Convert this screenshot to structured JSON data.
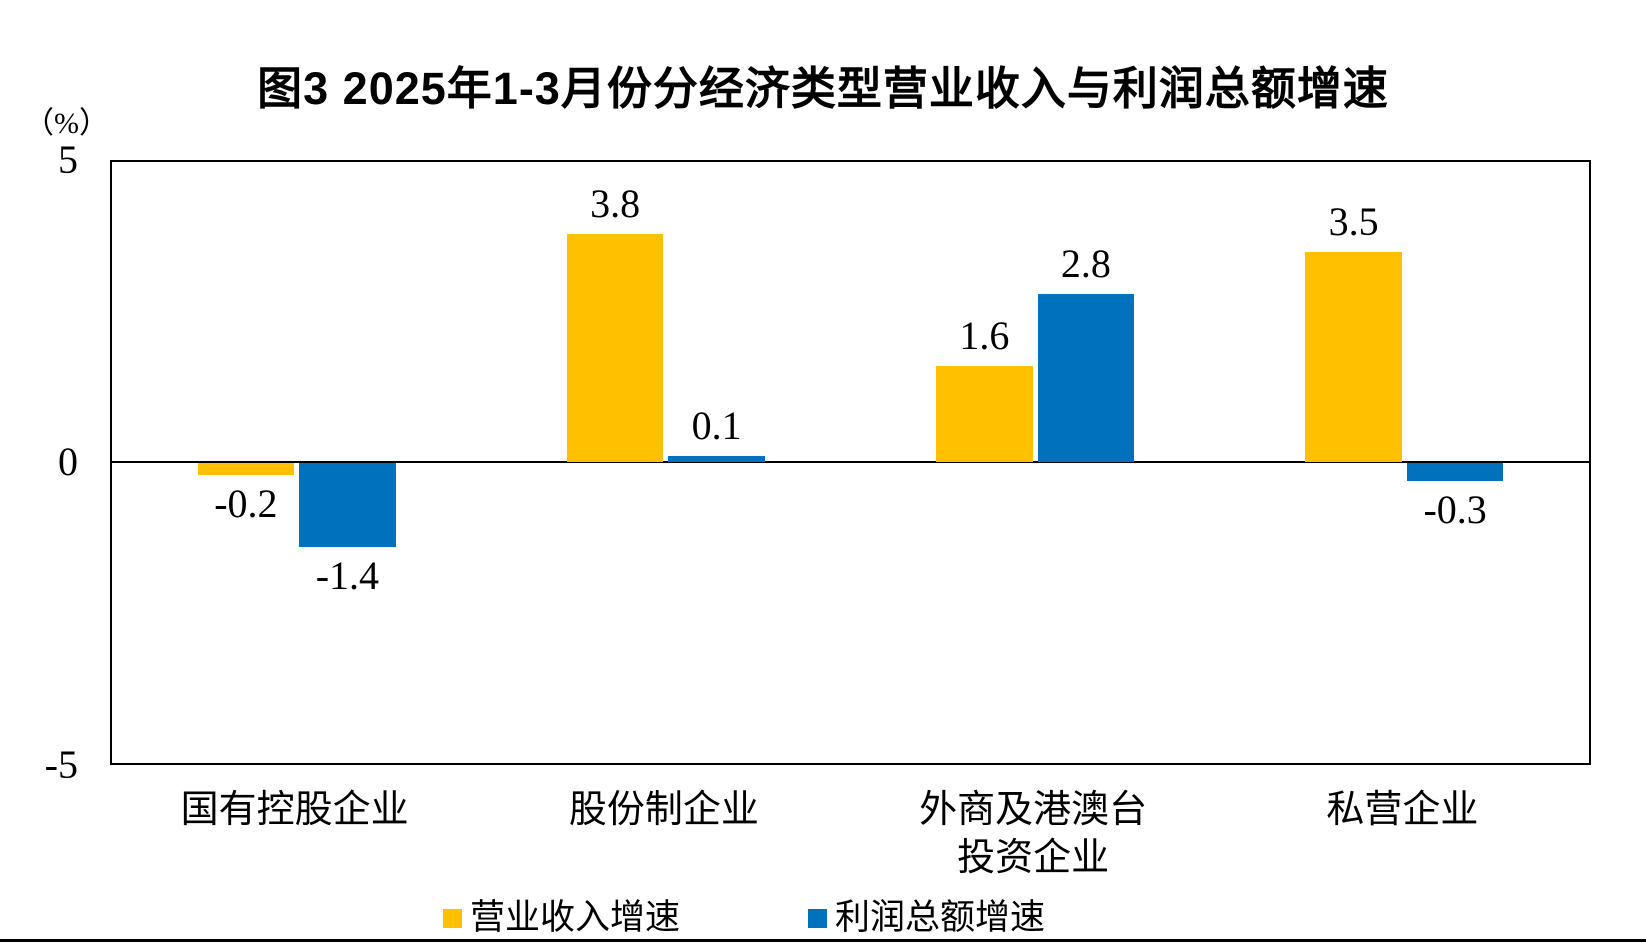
{
  "title": "图3  2025年1-3月份分经济类型营业收入与利润总额增速",
  "y_axis": {
    "unit_label": "（%）",
    "ticks": [
      "5",
      "0",
      "-5"
    ],
    "max": 5,
    "min": -5
  },
  "colors": {
    "revenue": "#FFC000",
    "profit": "#0071BC",
    "axis": "#000000",
    "background": "#FFFFFF"
  },
  "chart_data": {
    "type": "bar",
    "title": "图3 2025年1-3月份分经济类型营业收入与利润总额增速",
    "categories": [
      "国有控股企业",
      "股份制企业",
      "外商及港澳台\n投资企业",
      "私营企业"
    ],
    "series": [
      {
        "name": "营业收入增速",
        "color": "#FFC000",
        "values": [
          -0.2,
          3.8,
          1.6,
          3.5
        ]
      },
      {
        "name": "利润总额增速",
        "color": "#0071BC",
        "values": [
          -1.4,
          0.1,
          2.8,
          -0.3
        ]
      }
    ],
    "data_labels": [
      "-0.2",
      "3.8",
      "1.6",
      "3.5",
      "-1.4",
      "0.1",
      "2.8",
      "-0.3"
    ],
    "ylabel": "（%）",
    "ylim": [
      -5,
      5
    ],
    "ytick_step": 5,
    "grid": false,
    "legend_position": "bottom"
  }
}
